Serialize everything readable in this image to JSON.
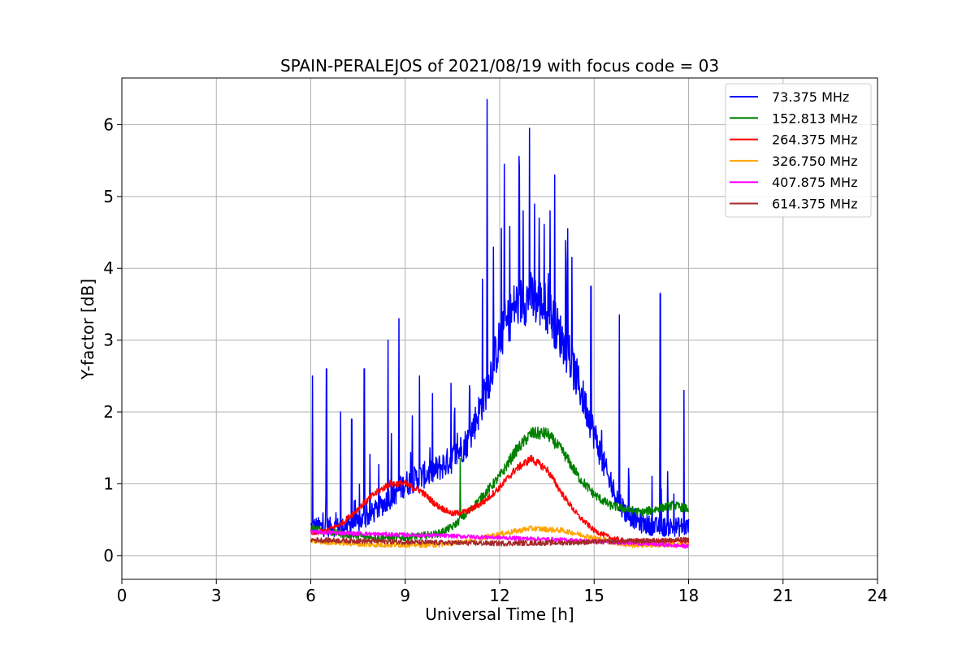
{
  "chart_data": {
    "type": "line",
    "title": "SPAIN-PERALEJOS of 2021/08/19 with focus code = 03",
    "xlabel": "Universal Time [h]",
    "ylabel": "Y-factor [dB]",
    "xlim": [
      0,
      24
    ],
    "ylim": [
      -0.33,
      6.65
    ],
    "xticks": [
      0,
      3,
      6,
      9,
      12,
      15,
      18,
      21,
      24
    ],
    "xtick_labels": [
      "0",
      "3",
      "6",
      "9",
      "12",
      "15",
      "18",
      "21",
      "24"
    ],
    "yticks": [
      0,
      1,
      2,
      3,
      4,
      5,
      6
    ],
    "ytick_labels": [
      "0",
      "1",
      "2",
      "3",
      "4",
      "5",
      "6"
    ],
    "grid": true,
    "legend_position": "top-right",
    "series": [
      {
        "name": " 73.375 MHz",
        "color": "#0000ff",
        "noise": 0.18,
        "spike_rate": 0.05,
        "x": [
          6.0,
          6.5,
          7.0,
          7.5,
          8.0,
          8.5,
          9.0,
          9.5,
          10.0,
          10.5,
          11.0,
          11.5,
          12.0,
          12.5,
          13.0,
          13.5,
          14.0,
          14.5,
          15.0,
          15.5,
          16.0,
          16.5,
          17.0,
          17.5,
          18.0
        ],
        "y": [
          0.4,
          0.4,
          0.4,
          0.45,
          0.6,
          0.8,
          1.0,
          1.1,
          1.2,
          1.35,
          1.6,
          2.2,
          3.0,
          3.5,
          3.6,
          3.45,
          3.0,
          2.4,
          1.7,
          1.0,
          0.6,
          0.45,
          0.4,
          0.4,
          0.4
        ],
        "spikes": [
          [
            6.05,
            2.5
          ],
          [
            6.5,
            2.6
          ],
          [
            6.95,
            2.0
          ],
          [
            7.3,
            1.9
          ],
          [
            7.7,
            2.6
          ],
          [
            8.45,
            3.0
          ],
          [
            8.8,
            3.3
          ],
          [
            9.45,
            2.5
          ],
          [
            10.45,
            2.4
          ],
          [
            11.05,
            2.3
          ],
          [
            11.45,
            3.85
          ],
          [
            11.6,
            6.35
          ],
          [
            12.15,
            5.45
          ],
          [
            12.75,
            4.8
          ],
          [
            12.95,
            5.95
          ],
          [
            13.25,
            4.7
          ],
          [
            13.6,
            4.8
          ],
          [
            13.75,
            5.3
          ],
          [
            14.9,
            3.75
          ],
          [
            15.8,
            3.35
          ],
          [
            17.1,
            3.65
          ],
          [
            17.85,
            2.3
          ]
        ]
      },
      {
        "name": "152.813 MHz",
        "color": "#008000",
        "noise": 0.07,
        "spike_rate": 0.0,
        "x": [
          6.0,
          7.0,
          8.0,
          9.0,
          10.0,
          10.5,
          11.0,
          11.5,
          12.0,
          12.5,
          13.0,
          13.5,
          14.0,
          14.5,
          15.0,
          15.5,
          16.0,
          16.5,
          17.0,
          17.5,
          18.0
        ],
        "y": [
          0.38,
          0.3,
          0.25,
          0.25,
          0.3,
          0.4,
          0.6,
          0.85,
          1.1,
          1.45,
          1.7,
          1.7,
          1.45,
          1.1,
          0.85,
          0.7,
          0.65,
          0.6,
          0.65,
          0.7,
          0.65
        ],
        "spikes": [
          [
            10.75,
            1.35
          ]
        ]
      },
      {
        "name": "264.375 MHz",
        "color": "#ff0000",
        "noise": 0.05,
        "spike_rate": 0.0,
        "x": [
          6.0,
          6.5,
          7.0,
          7.5,
          8.0,
          8.5,
          9.0,
          9.5,
          10.0,
          10.5,
          11.0,
          11.5,
          12.0,
          12.5,
          13.0,
          13.5,
          14.0,
          14.5,
          15.0,
          15.5,
          16.0,
          17.0,
          18.0
        ],
        "y": [
          0.3,
          0.35,
          0.45,
          0.65,
          0.85,
          1.0,
          1.0,
          0.9,
          0.7,
          0.58,
          0.62,
          0.75,
          0.95,
          1.2,
          1.35,
          1.2,
          0.85,
          0.55,
          0.35,
          0.25,
          0.2,
          0.2,
          0.2
        ],
        "spikes": []
      },
      {
        "name": "326.750 MHz",
        "color": "#ffa500",
        "noise": 0.05,
        "spike_rate": 0.0,
        "x": [
          6.0,
          8.0,
          10.0,
          11.0,
          12.0,
          13.0,
          14.0,
          15.0,
          16.0,
          18.0
        ],
        "y": [
          0.2,
          0.15,
          0.15,
          0.2,
          0.3,
          0.38,
          0.35,
          0.25,
          0.15,
          0.15
        ],
        "spikes": []
      },
      {
        "name": "407.875 MHz",
        "color": "#ff00ff",
        "noise": 0.04,
        "spike_rate": 0.0,
        "x": [
          6.0,
          8.0,
          10.0,
          12.0,
          14.0,
          16.0,
          18.0
        ],
        "y": [
          0.33,
          0.3,
          0.28,
          0.25,
          0.22,
          0.18,
          0.13
        ],
        "spikes": []
      },
      {
        "name": "614.375 MHz",
        "color": "#a52a2a",
        "noise": 0.05,
        "spike_rate": 0.0,
        "x": [
          6.0,
          8.0,
          10.0,
          12.0,
          14.0,
          16.0,
          18.0
        ],
        "y": [
          0.22,
          0.2,
          0.18,
          0.17,
          0.18,
          0.2,
          0.22
        ],
        "spikes": []
      }
    ]
  }
}
